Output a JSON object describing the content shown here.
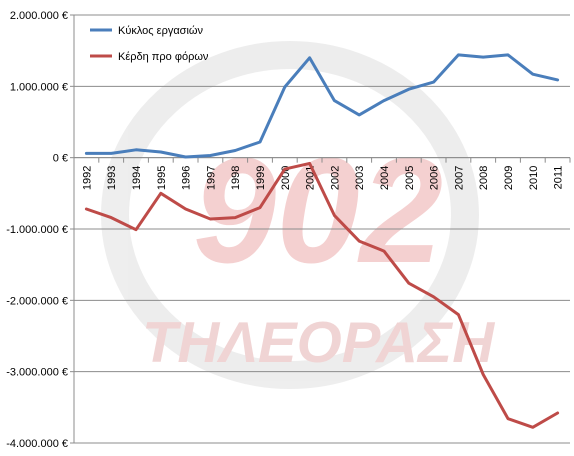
{
  "chart_data": {
    "type": "line",
    "categories": [
      "1992",
      "1993",
      "1994",
      "1995",
      "1996",
      "1997",
      "1998",
      "1999",
      "2000",
      "2001",
      "2002",
      "2003",
      "2004",
      "2005",
      "2006",
      "2007",
      "2008",
      "2009",
      "2010",
      "2011"
    ],
    "series": [
      {
        "name": "Κύκλος εργασιών",
        "color": "#4a7ebb",
        "values": [
          60000,
          60000,
          110000,
          80000,
          10000,
          30000,
          100000,
          220000,
          990000,
          1400000,
          800000,
          600000,
          800000,
          960000,
          1060000,
          1440000,
          1410000,
          1440000,
          1170000,
          1090000
        ]
      },
      {
        "name": "Κέρδη προ φόρων",
        "color": "#be4b48",
        "values": [
          -720000,
          -840000,
          -1010000,
          -500000,
          -720000,
          -860000,
          -840000,
          -700000,
          -160000,
          -80000,
          -810000,
          -1170000,
          -1310000,
          -1760000,
          -1950000,
          -2200000,
          -3040000,
          -3660000,
          -3780000,
          -3580000
        ]
      }
    ],
    "ylim": [
      -4000000,
      2000000
    ],
    "ytick_values": [
      2000000,
      1000000,
      0,
      -1000000,
      -2000000,
      -3000000,
      -4000000
    ],
    "ytick_labels": [
      "2.000.000 €",
      "1.000.000 €",
      "0 €",
      "-1.000.000 €",
      "-2.000.000 €",
      "-3.000.000 €",
      "-4.000.000 €"
    ],
    "grid": true,
    "legend_position": "top-left",
    "xlabel": "",
    "ylabel": "",
    "title": ""
  },
  "watermark": {
    "logo_text": "902",
    "caption_text": "ΤΗΛΕΟΡΑΣΗ",
    "color": "#e07070"
  }
}
